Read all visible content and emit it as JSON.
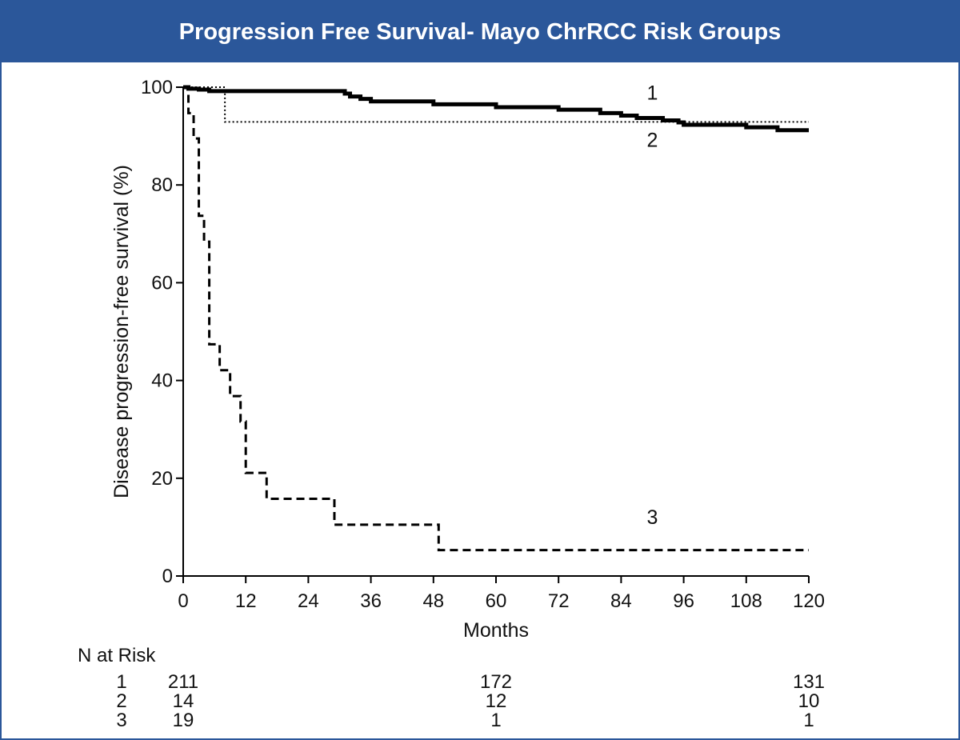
{
  "header": {
    "title": "Progression Free Survival- Mayo ChrRCC Risk Groups"
  },
  "colors": {
    "title_bar": "#2b579a",
    "title_text": "#ffffff",
    "curves": "#000000"
  },
  "chart_data": {
    "type": "line",
    "subtype": "kaplan-meier step",
    "xlabel": "Months",
    "ylabel": "Disease progression-free survival (%)",
    "xlim": [
      0,
      120
    ],
    "ylim": [
      0,
      100
    ],
    "xticks": [
      0,
      12,
      24,
      36,
      48,
      60,
      72,
      84,
      96,
      108,
      120
    ],
    "yticks": [
      0,
      20,
      40,
      60,
      80,
      100
    ],
    "grid": false,
    "series": [
      {
        "name": "1",
        "line_style": "solid-thick",
        "x": [
          0,
          1,
          3,
          5,
          30,
          31,
          32,
          34,
          36,
          48,
          52,
          60,
          68,
          72,
          76,
          80,
          84,
          87,
          92,
          95,
          96,
          102,
          108,
          114,
          120
        ],
        "y": [
          100,
          99.7,
          99.5,
          99.2,
          99.2,
          98.7,
          98.1,
          97.6,
          97.1,
          96.5,
          96.5,
          95.9,
          95.9,
          95.4,
          95.4,
          94.7,
          94.2,
          93.7,
          93.2,
          92.8,
          92.3,
          92.3,
          91.8,
          91.2,
          91.2
        ]
      },
      {
        "name": "2",
        "line_style": "dotted",
        "x": [
          0,
          8,
          120
        ],
        "y": [
          100,
          92.9,
          92.9
        ]
      },
      {
        "name": "3",
        "line_style": "dashed",
        "x": [
          0,
          1,
          2,
          3,
          4,
          5,
          7,
          9,
          11,
          12,
          15,
          16,
          29,
          49,
          120
        ],
        "y": [
          100,
          94.7,
          89.5,
          73.7,
          68.4,
          47.4,
          42.1,
          36.8,
          31.6,
          21.1,
          21.1,
          15.8,
          10.5,
          5.3,
          5.3
        ]
      }
    ],
    "curve_labels": [
      {
        "text": "1",
        "x": 90,
        "y": 97.5
      },
      {
        "text": "2",
        "x": 90,
        "y": 87.8
      },
      {
        "text": "3",
        "x": 90,
        "y": 10.6
      }
    ],
    "at_risk": {
      "header": "N at Risk",
      "columns_x": [
        0,
        60,
        120
      ],
      "rows": [
        {
          "group": "1",
          "counts": [
            "211",
            "172",
            "131"
          ]
        },
        {
          "group": "2",
          "counts": [
            "14",
            "12",
            "10"
          ]
        },
        {
          "group": "3",
          "counts": [
            "19",
            "1",
            "1"
          ]
        }
      ]
    }
  }
}
